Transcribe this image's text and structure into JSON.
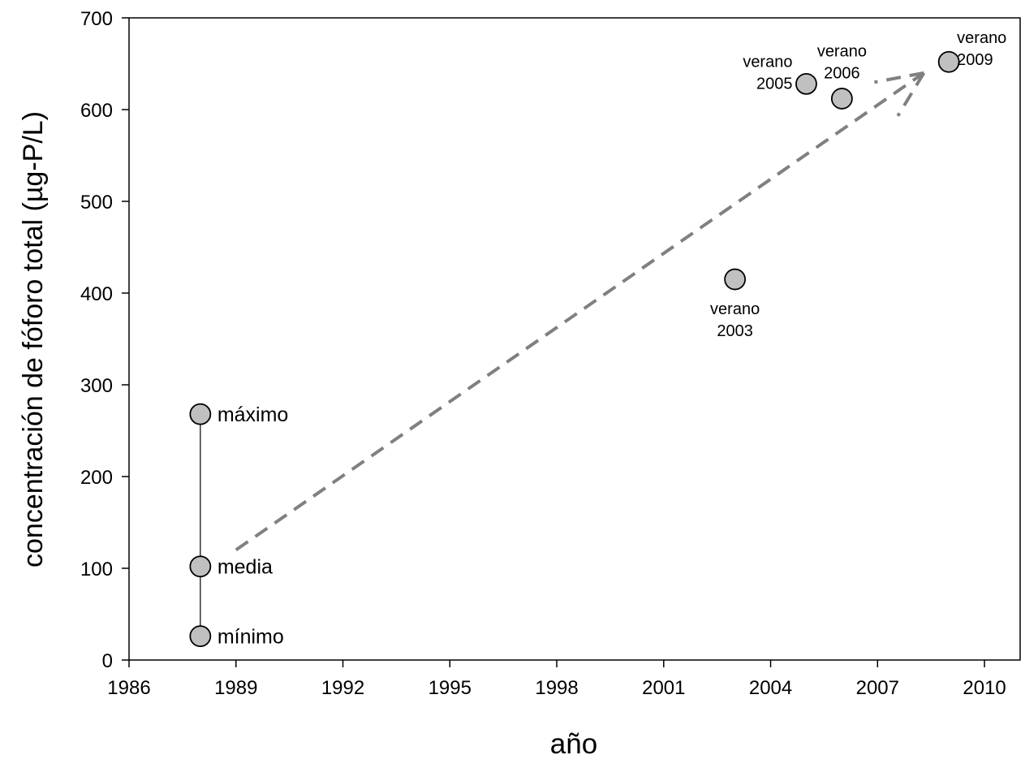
{
  "chart_data": {
    "type": "scatter",
    "title": "",
    "xlabel": "año",
    "ylabel": "concentración de fóforo total (µg-P/L)",
    "xlim": [
      1986,
      2011
    ],
    "ylim": [
      0,
      700
    ],
    "xticks": [
      1986,
      1989,
      1992,
      1995,
      1998,
      2001,
      2004,
      2007,
      2010
    ],
    "yticks": [
      0,
      100,
      200,
      300,
      400,
      500,
      600,
      700
    ],
    "grid": false,
    "legend": "none",
    "colors": {
      "marker_fill": "#c0c0c0",
      "marker_stroke": "#000000",
      "arrow": "#808080",
      "axis": "#000000"
    },
    "range_series": {
      "x": 1988,
      "points": [
        {
          "label": "máximo",
          "y": 268
        },
        {
          "label": "media",
          "y": 102
        },
        {
          "label": "mínimo",
          "y": 26
        }
      ]
    },
    "summer_points": [
      {
        "x": 2003,
        "y": 415,
        "label_lines": [
          "verano",
          "2003"
        ],
        "label_pos": "below"
      },
      {
        "x": 2005,
        "y": 628,
        "label_lines": [
          "verano",
          "2005"
        ],
        "label_pos": "left"
      },
      {
        "x": 2006,
        "y": 612,
        "label_lines": [
          "verano",
          "2006"
        ],
        "label_pos": "above"
      },
      {
        "x": 2009,
        "y": 652,
        "label_lines": [
          "verano",
          "2009"
        ],
        "label_pos": "above-right"
      }
    ],
    "trend_arrow": {
      "from": {
        "x": 1989,
        "y": 120
      },
      "to": {
        "x": 2008.3,
        "y": 640
      },
      "style": "dashed"
    }
  }
}
